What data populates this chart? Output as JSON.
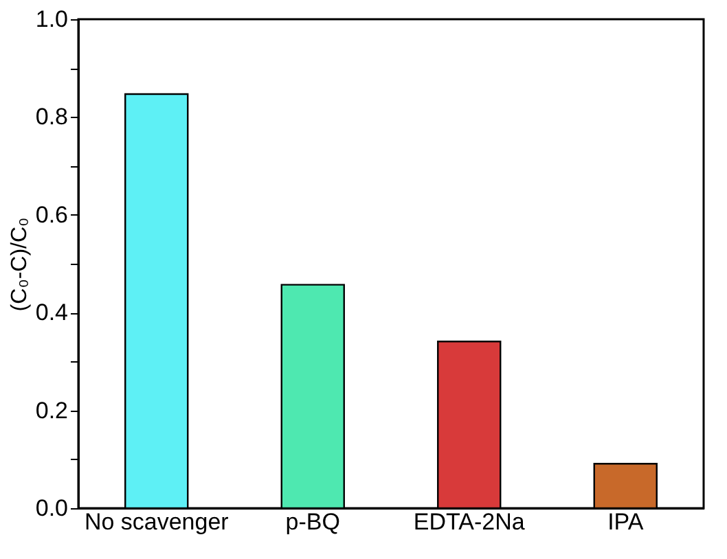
{
  "chart_data": {
    "type": "bar",
    "ylabel": "(C₀-C)/C₀",
    "categories": [
      "No scavenger",
      "p-BQ",
      "EDTA-2Na",
      "IPA"
    ],
    "values": [
      0.847,
      0.457,
      0.341,
      0.091
    ],
    "colors": [
      "#5ef0f5",
      "#4ee8b0",
      "#d83a3a",
      "#c8692a"
    ],
    "ylim": [
      0,
      1.0
    ],
    "yticks": [
      {
        "value": 0,
        "label": "0.0"
      },
      {
        "value": 0.1,
        "label": null
      },
      0.2,
      {
        "value": 0.3,
        "label": null
      },
      0.4,
      {
        "value": 0.5,
        "label": null
      },
      0.6,
      {
        "value": 0.7,
        "label": null
      },
      0.8,
      {
        "value": 0.9,
        "label": null
      },
      {
        "value": 1,
        "label": "1.0"
      }
    ],
    "grid": false
  }
}
